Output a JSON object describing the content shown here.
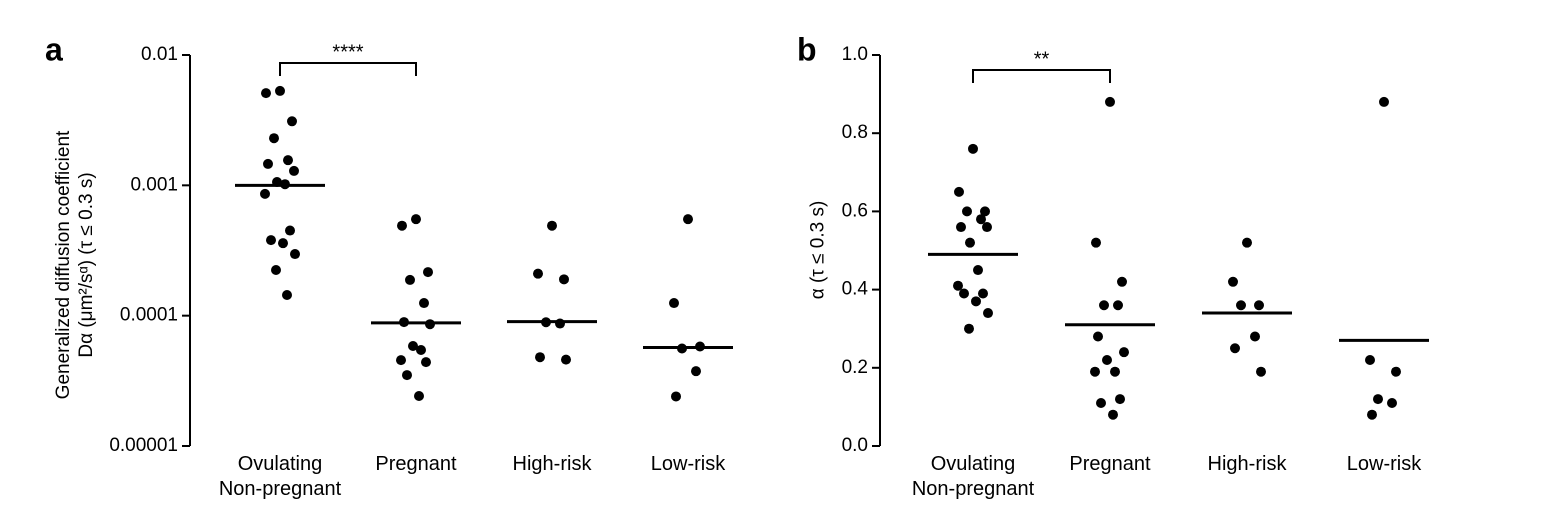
{
  "chart_data": [
    {
      "type": "strip",
      "label": "a",
      "annotation": "****",
      "ylabel": "Generalized diffusion coefficient\nDα (μm²/sᵅ) (τ ≤ 0.3 s)",
      "log_scale": true,
      "color": "#000000",
      "categories": [
        "Ovulating\nNon-pregnant",
        "Pregnant",
        "High-risk",
        "Low-risk"
      ],
      "values": [
        [
          0.0053,
          0.0051,
          0.0031,
          0.0023,
          0.00156,
          0.00146,
          0.00129,
          0.00106,
          0.00102,
          0.00086,
          0.00045,
          0.00038,
          0.00036,
          0.000297,
          0.000224,
          0.000144
        ],
        [
          0.00055,
          0.00049,
          0.000216,
          0.000188,
          0.000125,
          8.93e-05,
          8.6e-05,
          5.85e-05,
          5.45e-05,
          4.56e-05,
          4.4e-05,
          3.5e-05,
          2.42e-05
        ],
        [
          0.00049,
          0.00021,
          0.00019,
          8.9e-05,
          8.7e-05,
          4.8e-05,
          4.6e-05
        ],
        [
          0.00055,
          0.000125,
          5.8e-05,
          5.6e-05,
          3.75e-05,
          2.4e-05
        ]
      ],
      "means": [
        0.001,
        8.8e-05,
        9e-05,
        5.7e-05
      ],
      "ylim": [
        1e-05,
        0.01
      ],
      "yticks": [
        0.01,
        0.001,
        0.0001,
        1e-05
      ]
    },
    {
      "type": "strip",
      "label": "b",
      "annotation": "**",
      "ylabel": "α (τ ≤ 0.3 s)",
      "log_scale": false,
      "color": "#000000",
      "categories": [
        "Ovulating\nNon-pregnant",
        "Pregnant",
        "High-risk",
        "Low-risk"
      ],
      "values": [
        [
          0.76,
          0.65,
          0.6,
          0.6,
          0.58,
          0.56,
          0.56,
          0.52,
          0.45,
          0.41,
          0.39,
          0.39,
          0.37,
          0.34,
          0.3
        ],
        [
          0.88,
          0.52,
          0.42,
          0.36,
          0.36,
          0.28,
          0.24,
          0.22,
          0.19,
          0.19,
          0.12,
          0.11,
          0.08
        ],
        [
          0.52,
          0.42,
          0.36,
          0.36,
          0.28,
          0.25,
          0.19
        ],
        [
          0.88,
          0.22,
          0.19,
          0.12,
          0.11,
          0.08
        ]
      ],
      "means": [
        0.49,
        0.31,
        0.34,
        0.27
      ],
      "ylim": [
        0,
        1
      ],
      "yticks": [
        {
          "value": 1,
          "label": "1.0"
        },
        0.8,
        0.6,
        0.4,
        0.2,
        {
          "value": 0,
          "label": "0.0"
        }
      ]
    }
  ]
}
